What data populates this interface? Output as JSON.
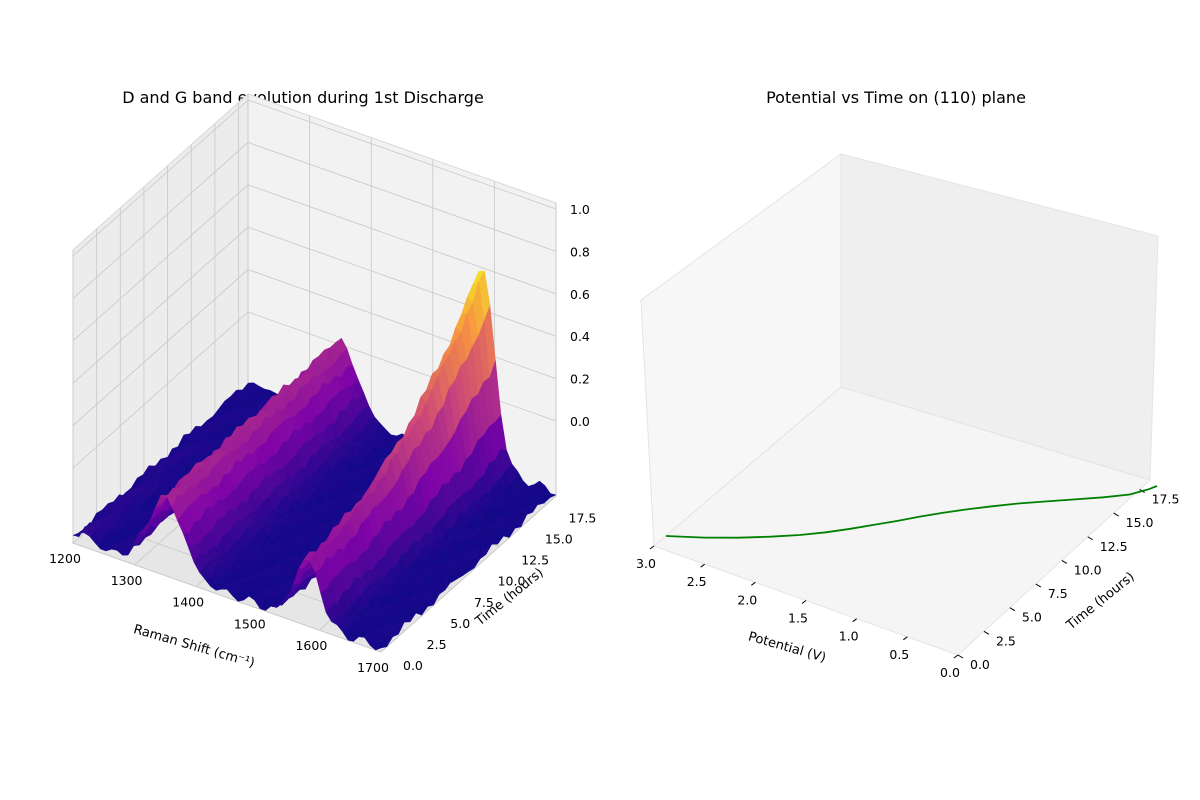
{
  "chart_data": [
    {
      "type": "surface3d",
      "title": "D and G band evolution during 1st Discharge",
      "xlabel": "Raman Shift (cm⁻¹)",
      "ylabel": "Time (hours)",
      "zlabel": "",
      "xlim": [
        1200,
        1700
      ],
      "ylim": [
        0,
        18.5
      ],
      "zlim": [
        0,
        1.0
      ],
      "x_ticks": [
        "1200",
        "1300",
        "1400",
        "1500",
        "1600",
        "1700"
      ],
      "y_ticks": [
        "0.0",
        "2.5",
        "5.0",
        "7.5",
        "10.0",
        "12.5",
        "15.0",
        "17.5"
      ],
      "z_ticks": [
        "0.0",
        "0.2",
        "0.4",
        "0.6",
        "0.8",
        "1.0"
      ],
      "colormap": "plasma",
      "grid": true,
      "bands": [
        {
          "center": 1350,
          "width": 40,
          "amplitude_start": 0.35,
          "amplitude_end": 0.35
        },
        {
          "center": 1580,
          "width": 28,
          "amplitude_start": 0.3,
          "amplitude_end": 0.95
        }
      ]
    },
    {
      "type": "line3d",
      "title": "Potential vs Time on (110) plane",
      "xlabel": "Potential (V)",
      "ylabel": "Time (hours)",
      "xlim": [
        0,
        3.0
      ],
      "ylim": [
        0,
        18.5
      ],
      "x_ticks": [
        "3.0",
        "2.5",
        "2.0",
        "1.5",
        "1.0",
        "0.5",
        "0.0"
      ],
      "y_ticks": [
        "0.0",
        "2.5",
        "5.0",
        "7.5",
        "10.0",
        "12.5",
        "15.0",
        "17.5"
      ],
      "line_color": "#008000",
      "grid": false,
      "series": [
        {
          "time": [
            0,
            1,
            2,
            3,
            4,
            5,
            6,
            7,
            8,
            9,
            10,
            11,
            12,
            13,
            14,
            15,
            16,
            17,
            18,
            18.5
          ],
          "potential": [
            3.0,
            2.72,
            2.48,
            2.27,
            2.08,
            1.92,
            1.78,
            1.65,
            1.52,
            1.4,
            1.27,
            1.13,
            0.98,
            0.82,
            0.64,
            0.46,
            0.28,
            0.12,
            0.03,
            0.0
          ]
        }
      ]
    }
  ]
}
